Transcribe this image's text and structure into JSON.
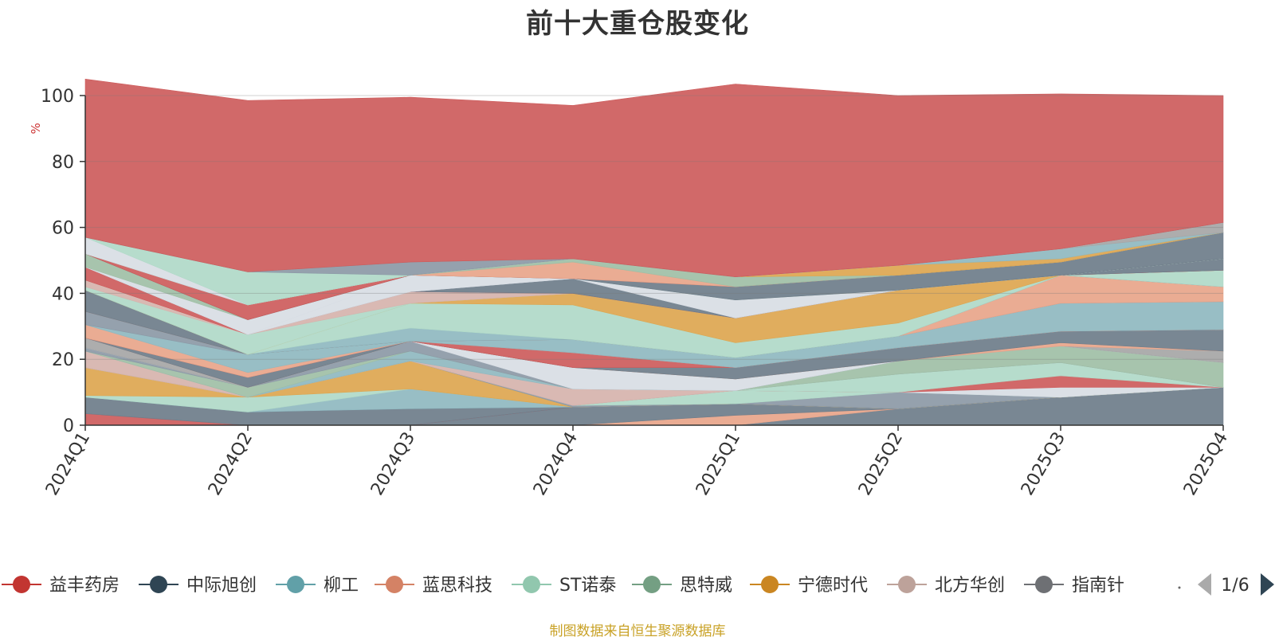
{
  "chart_data": {
    "type": "area",
    "title": "前十大重仓股变化",
    "ylabel": "%",
    "xlabel": "",
    "ylim": [
      0,
      100
    ],
    "yticks": [
      0,
      20,
      40,
      60,
      80,
      100
    ],
    "grid": true,
    "stacked": true,
    "categories": [
      "2024Q1",
      "2024Q2",
      "2024Q3",
      "2024Q4",
      "2025Q1",
      "2025Q2",
      "2025Q3",
      "2025Q4"
    ],
    "series": [
      {
        "name": "",
        "color": "#6e7d8a",
        "values": [
          0,
          0,
          0,
          0,
          0,
          5,
          8.5,
          11.5
        ]
      },
      {
        "name": "",
        "color": "#e8a58a",
        "values": [
          0,
          0,
          0,
          0,
          3,
          0,
          0,
          0
        ]
      },
      {
        "name": "",
        "color": "#6e7d8a",
        "values": [
          0,
          0,
          0,
          5.5,
          3.5,
          0,
          0,
          0
        ]
      },
      {
        "name": "",
        "color": "#cd5c5c",
        "values": [
          3.5,
          0,
          0,
          0,
          0,
          0,
          0,
          0
        ]
      },
      {
        "name": "",
        "color": "#6e7d8a",
        "values": [
          5,
          4,
          5,
          0,
          0,
          0,
          0,
          0
        ]
      },
      {
        "name": "",
        "color": "#8fb8c0",
        "values": [
          0,
          0,
          6,
          0,
          0,
          0,
          0,
          0
        ]
      },
      {
        "name": "",
        "color": "#b0d9c8",
        "values": [
          0.5,
          4.5,
          0,
          0,
          0,
          0,
          0,
          0
        ]
      },
      {
        "name": "",
        "color": "#dda650",
        "values": [
          8.5,
          0,
          8.5,
          0,
          0,
          0,
          0,
          0
        ]
      },
      {
        "name": "",
        "color": "#8c99a6",
        "values": [
          0,
          0,
          0,
          0.5,
          0,
          5,
          0,
          0
        ]
      },
      {
        "name": "",
        "color": "#b0d9c8",
        "values": [
          0,
          0,
          0,
          0,
          4,
          0,
          0,
          0
        ]
      },
      {
        "name": "",
        "color": "#d8dde4",
        "values": [
          0,
          0,
          0,
          0,
          0,
          0,
          3,
          0
        ]
      },
      {
        "name": "",
        "color": "#cd5c5c",
        "values": [
          0,
          0,
          0,
          0,
          0,
          0,
          3.5,
          0
        ]
      },
      {
        "name": "",
        "color": "#b0d9c8",
        "values": [
          0,
          0,
          0,
          0,
          0,
          5.5,
          4,
          0
        ]
      },
      {
        "name": "",
        "color": "#d6b3ad",
        "values": [
          5,
          0,
          0,
          5,
          0,
          0,
          0,
          0
        ]
      },
      {
        "name": "",
        "color": "#8fb8c0",
        "values": [
          0,
          0,
          3,
          0,
          0,
          0,
          0,
          0
        ]
      },
      {
        "name": "",
        "color": "#9fbfa6",
        "values": [
          0,
          3,
          0,
          0,
          0,
          4,
          5,
          7.5
        ]
      },
      {
        "name": "",
        "color": "#8c99a6",
        "values": [
          1,
          0,
          3,
          0,
          0,
          0,
          0,
          0
        ]
      },
      {
        "name": "",
        "color": "#d8dde4",
        "values": [
          0,
          0,
          0,
          6.5,
          3.5,
          0,
          0,
          0
        ]
      },
      {
        "name": "",
        "color": "#a6a6a6",
        "values": [
          3,
          0,
          0,
          0,
          0,
          0,
          0,
          3.5
        ]
      },
      {
        "name": "",
        "color": "#e8a58a",
        "values": [
          0,
          0,
          0,
          0,
          0,
          0,
          1,
          0
        ]
      },
      {
        "name": "",
        "color": "#6e7d8a",
        "values": [
          0,
          3,
          0,
          0,
          3.5,
          4,
          3.5,
          6.5
        ]
      },
      {
        "name": "",
        "color": "#cd5c5c",
        "values": [
          0,
          0,
          0,
          4.5,
          0,
          0,
          0,
          0
        ]
      },
      {
        "name": "",
        "color": "#e8a58a",
        "values": [
          4,
          1.5,
          0,
          0,
          0,
          0,
          0,
          0
        ]
      },
      {
        "name": "",
        "color": "#8fb8c0",
        "values": [
          0,
          5.5,
          0,
          4,
          3,
          3.5,
          8.5,
          8.5
        ]
      },
      {
        "name": "",
        "color": "#8c99a6",
        "values": [
          4,
          0,
          0,
          0,
          0,
          0,
          0,
          0
        ]
      },
      {
        "name": "",
        "color": "#e8a58a",
        "values": [
          0,
          0,
          0,
          0,
          0,
          0,
          8.5,
          4.5
        ]
      },
      {
        "name": "",
        "color": "#6e7d8a",
        "values": [
          6.5,
          0,
          0,
          0,
          0,
          0,
          0,
          0
        ]
      },
      {
        "name": "",
        "color": "#8fb8c0",
        "values": [
          0,
          0,
          4,
          0,
          0,
          0,
          0,
          0
        ]
      },
      {
        "name": "",
        "color": "#b0d9c8",
        "values": [
          0,
          0,
          7.5,
          10.5,
          4.5,
          4,
          0,
          5
        ]
      },
      {
        "name": "",
        "color": "#dda650",
        "values": [
          0,
          0,
          0,
          3.5,
          7.5,
          10,
          0,
          0
        ]
      },
      {
        "name": "",
        "color": "#b0d9c8",
        "values": [
          1,
          6,
          0,
          0,
          0,
          0,
          0,
          0
        ]
      },
      {
        "name": "",
        "color": "#d6b3ad",
        "values": [
          2,
          0,
          3.5,
          0,
          0,
          0,
          0,
          0
        ]
      },
      {
        "name": "",
        "color": "#cd5c5c",
        "values": [
          4,
          0,
          0,
          0,
          0,
          0,
          0,
          0
        ]
      },
      {
        "name": "",
        "color": "#6e7d8a",
        "values": [
          0,
          0,
          0,
          4.5,
          0,
          0,
          0,
          3.5
        ]
      },
      {
        "name": "",
        "color": "#d8dde4",
        "values": [
          0,
          0,
          0,
          0,
          5.5,
          0,
          0,
          0
        ]
      },
      {
        "name": "",
        "color": "#d8dde4",
        "values": [
          0,
          0,
          5,
          0,
          0,
          0,
          0,
          0
        ]
      },
      {
        "name": "",
        "color": "#d8dde4",
        "values": [
          0,
          4.5,
          0,
          0,
          0,
          0,
          0,
          0
        ]
      },
      {
        "name": "",
        "color": "#9fbfa6",
        "values": [
          4,
          0,
          0,
          0,
          0,
          0,
          0,
          0
        ]
      },
      {
        "name": "",
        "color": "#6e7d8a",
        "values": [
          0,
          0,
          0,
          0,
          4,
          4.5,
          4,
          8
        ]
      },
      {
        "name": "",
        "color": "#cd5c5c",
        "values": [
          0,
          4.5,
          0,
          0,
          0,
          0,
          0,
          0
        ]
      },
      {
        "name": "",
        "color": "#e8a58a",
        "values": [
          0,
          0,
          0,
          5,
          0,
          0,
          0,
          0
        ]
      },
      {
        "name": "",
        "color": "#9fbfa6",
        "values": [
          0,
          0,
          0,
          1,
          3,
          0,
          0,
          0
        ]
      },
      {
        "name": "",
        "color": "#dda650",
        "values": [
          0,
          0,
          0,
          0,
          0,
          3,
          1,
          0
        ]
      },
      {
        "name": "",
        "color": "#8fb8c0",
        "values": [
          0,
          0,
          0,
          0,
          0,
          0,
          3,
          0
        ]
      },
      {
        "name": "",
        "color": "#a6a6a6",
        "values": [
          0,
          0,
          0,
          0,
          0,
          0,
          0,
          3
        ]
      },
      {
        "name": "",
        "color": "#d8dde4",
        "values": [
          5,
          0,
          0,
          0,
          0,
          0,
          0,
          0
        ]
      },
      {
        "name": "",
        "color": "#b0d9c8",
        "values": [
          0,
          10,
          0,
          0,
          0,
          0,
          0,
          0
        ]
      },
      {
        "name": "",
        "color": "#8c99a6",
        "values": [
          0,
          0,
          4,
          0,
          0,
          0,
          0,
          0
        ]
      },
      {
        "name": "",
        "color": "#cd5c5c",
        "values": [
          48,
          52,
          50,
          46.5,
          58.5,
          51.5,
          47,
          38.5
        ]
      }
    ],
    "legend": {
      "position": "bottom",
      "page": "1/6",
      "items": [
        {
          "name": "益丰药房",
          "color": "#c23531"
        },
        {
          "name": "中际旭创",
          "color": "#2f4554"
        },
        {
          "name": "柳工",
          "color": "#61a0a8"
        },
        {
          "name": "蓝思科技",
          "color": "#d48265"
        },
        {
          "name": "ST诺泰",
          "color": "#91c7ae"
        },
        {
          "name": "思特威",
          "color": "#749f83"
        },
        {
          "name": "宁德时代",
          "color": "#ca8622"
        },
        {
          "name": "北方华创",
          "color": "#bda29a"
        },
        {
          "name": "指南针",
          "color": "#6e7074"
        }
      ]
    }
  },
  "source_note": "制图数据来自恒生聚源数据库",
  "colors": {
    "axis": "#333333",
    "grid": "rgba(120,120,120,0.35)",
    "ylabel": "#cc3333",
    "pager_disabled": "#aaaaaa",
    "pager_active": "#2f4554"
  }
}
